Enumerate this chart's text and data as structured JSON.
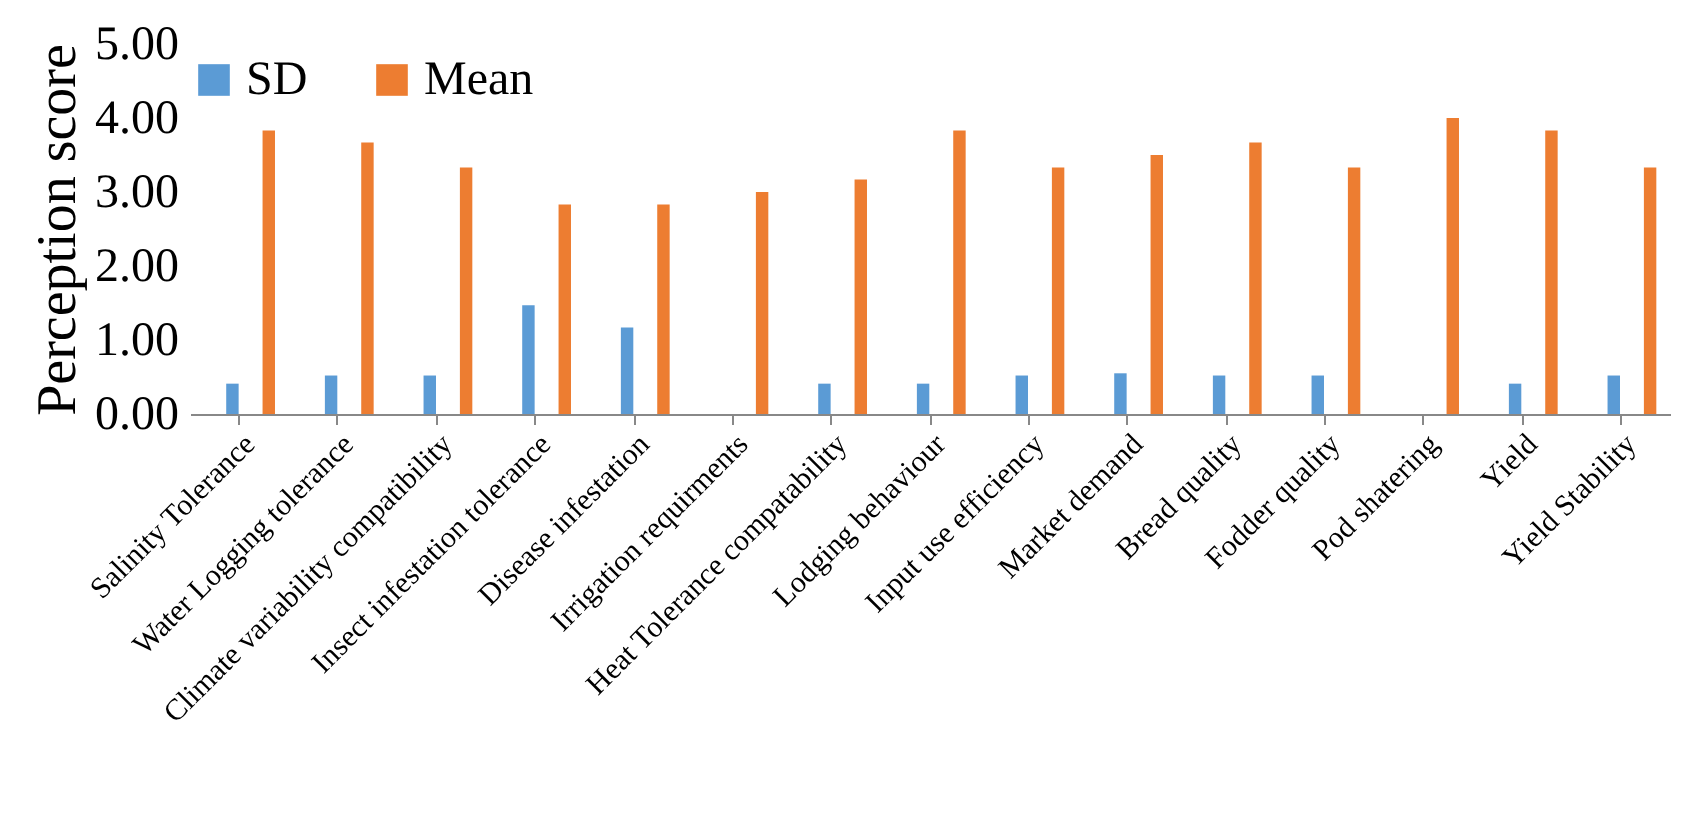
{
  "chart_data": {
    "type": "bar",
    "ylabel": "Perception score",
    "categories": [
      "Salinity Tolerance",
      "Water Logging tolerance",
      "Climate variability compatibility",
      "Insect infestation tolerance",
      "Disease infestation",
      "Irrigation requirments",
      "Heat Tolerance compatability",
      "Lodging behaviour",
      "Input use efficiency",
      "Market demand",
      "Bread quality",
      "Fodder quality",
      "Pod shatering",
      "Yield",
      "Yield Stability"
    ],
    "series": [
      {
        "name": "SD",
        "color": "#5b9bd5",
        "values": [
          0.41,
          0.52,
          0.52,
          1.47,
          1.17,
          0,
          0.41,
          0.41,
          0.52,
          0.55,
          0.52,
          0.52,
          0,
          0.41,
          0.52
        ]
      },
      {
        "name": "Mean",
        "color": "#ed7d31",
        "values": [
          3.83,
          3.67,
          3.33,
          2.83,
          2.83,
          3.0,
          3.17,
          3.83,
          3.33,
          3.5,
          3.67,
          3.33,
          4.0,
          3.83,
          3.33
        ]
      }
    ],
    "ylim": [
      0,
      5
    ],
    "yticks": [
      {
        "value": 0,
        "label": "0.00"
      },
      {
        "value": 1,
        "label": "1.00"
      },
      {
        "value": 2,
        "label": "2.00"
      },
      {
        "value": 3,
        "label": "3.00"
      },
      {
        "value": 4,
        "label": "4.00"
      },
      {
        "value": 5,
        "label": "5.00"
      }
    ],
    "grid": false,
    "legend": "top"
  }
}
